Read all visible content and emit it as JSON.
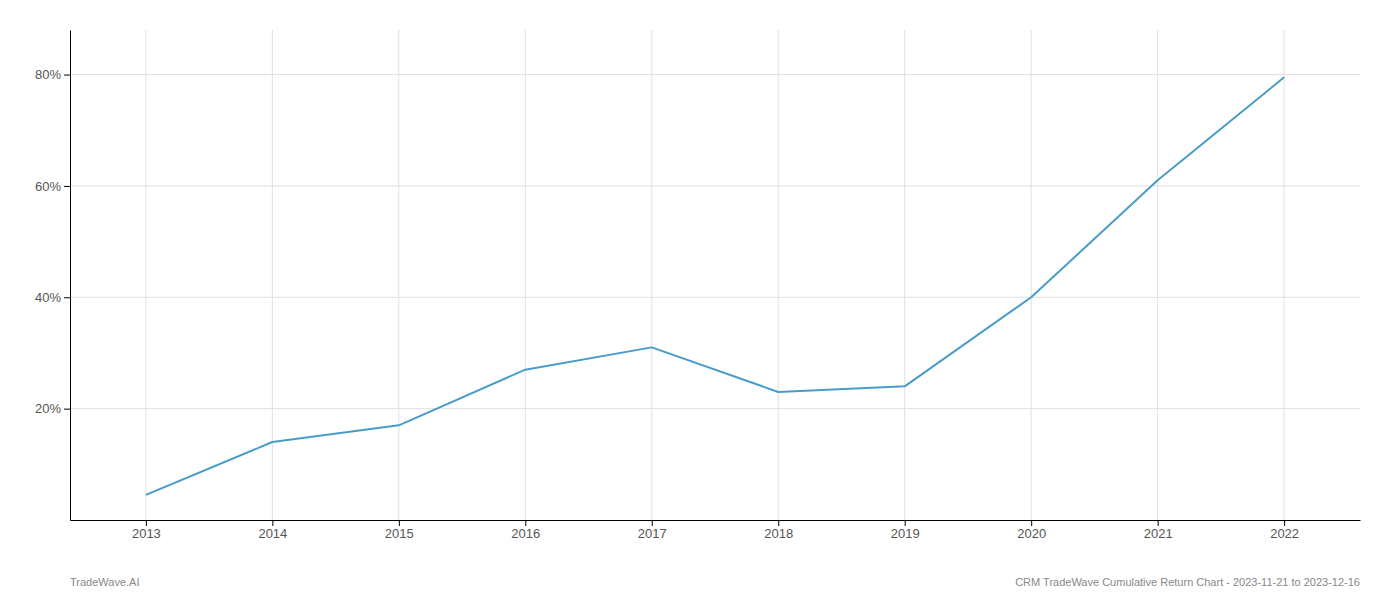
{
  "chart_data": {
    "type": "line",
    "x": [
      2013,
      2014,
      2015,
      2016,
      2017,
      2018,
      2019,
      2020,
      2021,
      2022
    ],
    "values": [
      4.5,
      14.0,
      17.0,
      27.0,
      31.0,
      23.0,
      24.0,
      40.0,
      61.0,
      79.5
    ],
    "color": "#4a9cc8",
    "xlim": [
      2012.4,
      2022.6
    ],
    "xticks": [
      2013,
      2014,
      2015,
      2016,
      2017,
      2018,
      2019,
      2020,
      2021,
      2022
    ],
    "ylim": [
      0,
      88
    ],
    "yticks": [
      {
        "value": 20,
        "label": "20%"
      },
      {
        "value": 40,
        "label": "40%"
      },
      {
        "value": 60,
        "label": "60%"
      },
      {
        "value": 80,
        "label": "80%"
      }
    ],
    "grid": true,
    "annotations": [
      "TradeWave.AI",
      "CRM TradeWave Cumulative Return Chart - 2023-11-21 to 2023-12-16"
    ]
  }
}
